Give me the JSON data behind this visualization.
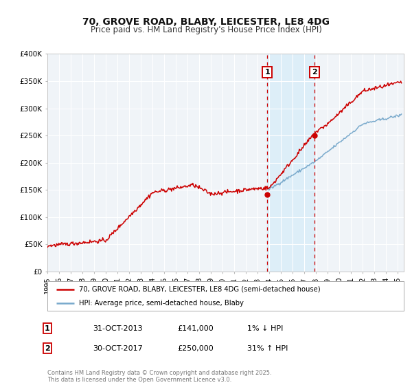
{
  "title": "70, GROVE ROAD, BLABY, LEICESTER, LE8 4DG",
  "subtitle": "Price paid vs. HM Land Registry's House Price Index (HPI)",
  "background_color": "#ffffff",
  "plot_bg_color": "#f0f4f8",
  "grid_color": "#ffffff",
  "xmin": 1995,
  "xmax": 2025.5,
  "ymin": 0,
  "ymax": 400000,
  "yticks": [
    0,
    50000,
    100000,
    150000,
    200000,
    250000,
    300000,
    350000,
    400000
  ],
  "ytick_labels": [
    "£0",
    "£50K",
    "£100K",
    "£150K",
    "£200K",
    "£250K",
    "£300K",
    "£350K",
    "£400K"
  ],
  "sale1_x": 2013.833,
  "sale1_y": 141000,
  "sale2_x": 2017.833,
  "sale2_y": 250000,
  "sale1_date": "31-OCT-2013",
  "sale1_price": "£141,000",
  "sale1_hpi": "1% ↓ HPI",
  "sale2_date": "30-OCT-2017",
  "sale2_price": "£250,000",
  "sale2_hpi": "31% ↑ HPI",
  "red_line_color": "#cc0000",
  "blue_line_color": "#7aaacc",
  "highlight_fill": "#ddeef8",
  "vline_color": "#cc0000",
  "legend_label_red": "70, GROVE ROAD, BLABY, LEICESTER, LE8 4DG (semi-detached house)",
  "legend_label_blue": "HPI: Average price, semi-detached house, Blaby",
  "footer": "Contains HM Land Registry data © Crown copyright and database right 2025.\nThis data is licensed under the Open Government Licence v3.0."
}
